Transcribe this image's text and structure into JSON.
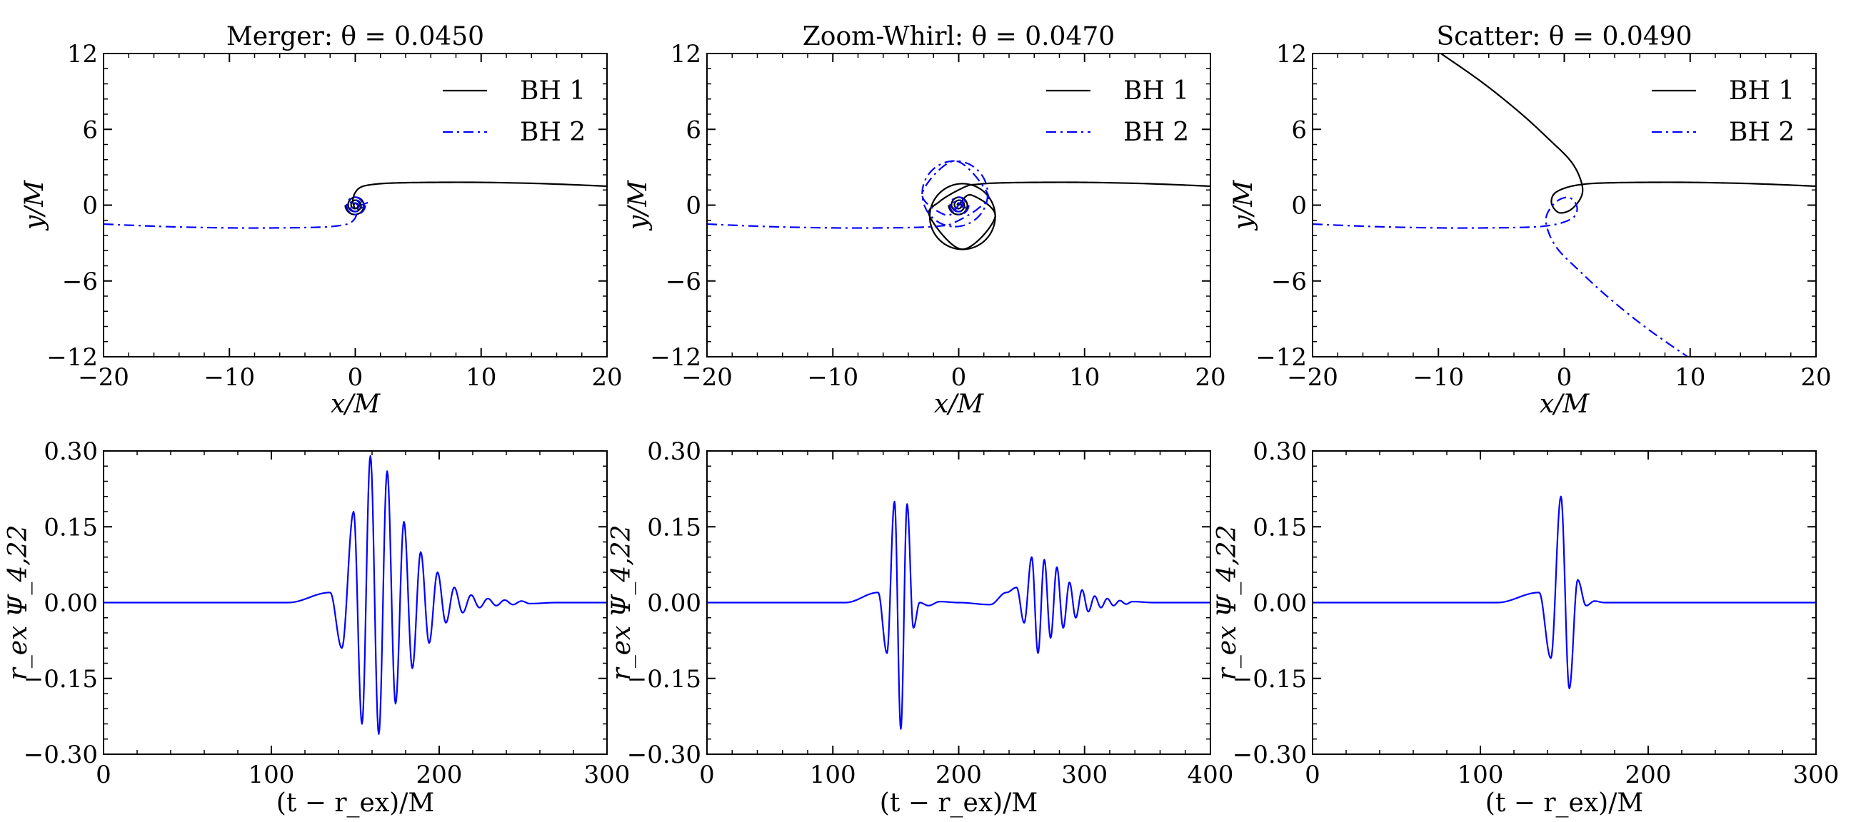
{
  "figure": {
    "description_free": true
  },
  "colors": {
    "bh1": "#000000",
    "bh2": "#0000ff",
    "wave": "#0000ff"
  },
  "legend": {
    "bh1_label": "BH 1",
    "bh2_label": "BH 2",
    "bh1_style": "solid",
    "bh2_style": "dash-dot"
  },
  "chart_data": [
    {
      "id": "traj-merger",
      "type": "line",
      "title": "Merger: θ = 0.0450",
      "xlabel": "x/M",
      "ylabel": "y/M",
      "xlim": [
        -20,
        20
      ],
      "ylim": [
        -12,
        12
      ],
      "xticks": [
        -20,
        -10,
        0,
        10,
        20
      ],
      "xtick_labels": [
        "−20",
        "−10",
        "0",
        "10",
        "20"
      ],
      "yticks": [
        -12,
        -6,
        0,
        6,
        12
      ],
      "ytick_labels": [
        "−12",
        "−6",
        "0",
        "6",
        "12"
      ],
      "legend_position": "top-right",
      "orbit": {
        "kind": "merger",
        "incoming_offset": 1.5,
        "spiral_turns": 3,
        "spiral_radius_start": 0.8,
        "spiral_radius_end": 0.1
      },
      "series": [
        {
          "name": "BH 1",
          "style": "solid",
          "color": "#000000",
          "x": [
            20,
            15,
            10,
            6,
            3,
            1.5,
            0.5,
            0.0,
            -0.2,
            0.0
          ],
          "y": [
            1.5,
            1.7,
            1.8,
            1.8,
            1.75,
            1.65,
            1.45,
            1.0,
            0.3,
            -0.3
          ]
        },
        {
          "name": "BH 2",
          "style": "dash-dot",
          "color": "#0000ff",
          "x": [
            -20,
            -15,
            -10,
            -6,
            -3,
            -1.5,
            -0.5,
            0.0,
            0.2,
            0.5,
            1.0
          ],
          "y": [
            -1.5,
            -1.7,
            -1.8,
            -1.8,
            -1.75,
            -1.65,
            -1.45,
            -1.0,
            -0.3,
            0.0,
            0.2
          ]
        }
      ]
    },
    {
      "id": "traj-zoomwhirl",
      "type": "line",
      "title": "Zoom-Whirl: θ = 0.0470",
      "xlabel": "x/M",
      "ylabel": "y/M",
      "xlim": [
        -20,
        20
      ],
      "ylim": [
        -12,
        12
      ],
      "xticks": [
        -20,
        -10,
        0,
        10,
        20
      ],
      "xtick_labels": [
        "−20",
        "−10",
        "0",
        "10",
        "20"
      ],
      "yticks": [
        -12,
        -6,
        0,
        6,
        12
      ],
      "ytick_labels": [
        "−12",
        "−6",
        "0",
        "6",
        "12"
      ],
      "legend_position": "top-right",
      "orbit": {
        "kind": "zoomwhirl",
        "incoming_offset": 1.5,
        "whirl_radius": 2.6,
        "whirl_center": [
          0.3,
          -0.9
        ],
        "spiral_turns": 3,
        "spiral_radius_start": 0.8,
        "spiral_radius_end": 0.1
      },
      "series": [
        {
          "name": "BH 1",
          "style": "solid",
          "color": "#000000",
          "x": [
            20,
            15,
            10,
            6,
            3,
            1.5,
            0.5,
            -1.5,
            -2.3,
            0.3,
            2.9,
            1.0,
            0.0
          ],
          "y": [
            1.5,
            1.7,
            1.8,
            1.8,
            1.75,
            1.65,
            1.45,
            0.3,
            -0.9,
            -3.5,
            -0.9,
            0.8,
            0.0
          ]
        },
        {
          "name": "BH 2",
          "style": "dash-dot",
          "color": "#0000ff",
          "x": [
            -20,
            -15,
            -10,
            -6,
            -3,
            -1.5,
            -0.5,
            1.5,
            2.3,
            -0.3,
            -2.9,
            -1.0,
            0.0
          ],
          "y": [
            -1.5,
            -1.7,
            -1.8,
            -1.8,
            -1.75,
            -1.65,
            -1.45,
            -0.3,
            0.9,
            3.5,
            0.9,
            -0.8,
            0.0
          ]
        }
      ]
    },
    {
      "id": "traj-scatter",
      "type": "line",
      "title": "Scatter: θ = 0.0490",
      "xlabel": "x/M",
      "ylabel": "y/M",
      "xlim": [
        -20,
        20
      ],
      "ylim": [
        -12,
        12
      ],
      "xticks": [
        -20,
        -10,
        0,
        10,
        20
      ],
      "xtick_labels": [
        "−20",
        "−10",
        "0",
        "10",
        "20"
      ],
      "yticks": [
        -12,
        -6,
        0,
        6,
        12
      ],
      "ytick_labels": [
        "−12",
        "−6",
        "0",
        "6",
        "12"
      ],
      "legend_position": "top-right",
      "orbit": {
        "kind": "scatter"
      },
      "series": [
        {
          "name": "BH 1",
          "style": "solid",
          "color": "#000000",
          "x": [
            20,
            15,
            10,
            6,
            3,
            1.5,
            0.2,
            -0.8,
            -1.0,
            -0.4,
            0.6,
            1.4,
            1.3,
            0.5,
            -1.2,
            -3.5,
            -6.5,
            -9.8
          ],
          "y": [
            1.5,
            1.7,
            1.8,
            1.8,
            1.75,
            1.65,
            1.4,
            0.9,
            0.1,
            -0.6,
            -0.3,
            0.8,
            2.0,
            3.5,
            5.2,
            7.3,
            9.7,
            12.0
          ]
        },
        {
          "name": "BH 2",
          "style": "dash-dot",
          "color": "#0000ff",
          "x": [
            -20,
            -15,
            -10,
            -6,
            -3,
            -1.5,
            -0.2,
            0.8,
            1.0,
            0.4,
            -0.6,
            -1.4,
            -1.3,
            -0.5,
            1.2,
            3.5,
            6.5,
            9.8
          ],
          "y": [
            -1.5,
            -1.7,
            -1.8,
            -1.8,
            -1.75,
            -1.65,
            -1.4,
            -0.9,
            -0.1,
            0.6,
            0.3,
            -0.8,
            -2.0,
            -3.5,
            -5.2,
            -7.3,
            -9.7,
            -12.0
          ]
        }
      ]
    },
    {
      "id": "wave-merger",
      "type": "line",
      "title": "",
      "xlabel": "(t − r_ex)/M",
      "ylabel": "r_ex Ψ_4,22",
      "xlim": [
        0,
        300
      ],
      "ylim": [
        -0.3,
        0.3
      ],
      "xticks": [
        0,
        100,
        200,
        300
      ],
      "xtick_labels": [
        "0",
        "100",
        "200",
        "300"
      ],
      "yticks": [
        -0.3,
        -0.15,
        0,
        0.15,
        0.3
      ],
      "ytick_labels": [
        "−0.30",
        "−0.15",
        "0.00",
        "0.15",
        "0.30"
      ],
      "series": [
        {
          "name": "r_ex Ψ_4,22",
          "color": "#0000ff",
          "extrema_t": [
            135,
            142,
            149,
            154,
            159,
            164,
            169,
            174,
            179,
            184,
            189,
            194,
            199,
            204,
            209,
            214,
            219,
            224,
            229,
            234,
            239,
            244,
            249,
            254
          ],
          "extrema_v": [
            0.02,
            -0.09,
            0.18,
            -0.24,
            0.29,
            -0.26,
            0.26,
            -0.2,
            0.16,
            -0.13,
            0.1,
            -0.08,
            0.06,
            -0.04,
            0.03,
            -0.02,
            0.015,
            -0.01,
            0.008,
            -0.006,
            0.005,
            -0.004,
            0.003,
            -0.002
          ],
          "onset_t": 110,
          "decay_end_t": 270
        }
      ]
    },
    {
      "id": "wave-zoomwhirl",
      "type": "line",
      "title": "",
      "xlabel": "(t − r_ex)/M",
      "ylabel": "r_ex Ψ_4,22",
      "xlim": [
        0,
        400
      ],
      "ylim": [
        -0.3,
        0.3
      ],
      "xticks": [
        0,
        100,
        200,
        300,
        400
      ],
      "xtick_labels": [
        "0",
        "100",
        "200",
        "300",
        "400"
      ],
      "yticks": [
        -0.3,
        -0.15,
        0,
        0.15,
        0.3
      ],
      "ytick_labels": [
        "−0.30",
        "−0.15",
        "0.00",
        "0.15",
        "0.30"
      ],
      "series": [
        {
          "name": "r_ex Ψ_4,22",
          "color": "#0000ff",
          "extrema_t": [
            136,
            143,
            149,
            154,
            159,
            164,
            169,
            176,
            185,
            200,
            225,
            238,
            246,
            252,
            258,
            263,
            268,
            273,
            278,
            283,
            288,
            293,
            298,
            303,
            308,
            313,
            318,
            323,
            328,
            333,
            338
          ],
          "extrema_v": [
            0.02,
            -0.1,
            0.2,
            -0.25,
            0.195,
            -0.05,
            0.0,
            -0.006,
            0.002,
            0.0,
            -0.004,
            0.02,
            0.03,
            -0.04,
            0.09,
            -0.1,
            0.085,
            -0.07,
            0.07,
            -0.05,
            0.04,
            -0.03,
            0.025,
            -0.018,
            0.013,
            -0.01,
            0.008,
            -0.006,
            0.004,
            -0.003,
            0.002
          ],
          "onset_t": 110,
          "decay_end_t": 355
        }
      ]
    },
    {
      "id": "wave-scatter",
      "type": "line",
      "title": "",
      "xlabel": "(t − r_ex)/M",
      "ylabel": "r_ex Ψ_4,22",
      "xlim": [
        0,
        300
      ],
      "ylim": [
        -0.3,
        0.3
      ],
      "xticks": [
        0,
        100,
        200,
        300
      ],
      "xtick_labels": [
        "0",
        "100",
        "200",
        "300"
      ],
      "yticks": [
        -0.3,
        -0.15,
        0,
        0.15,
        0.3
      ],
      "ytick_labels": [
        "−0.30",
        "−0.15",
        "0.00",
        "0.15",
        "0.30"
      ],
      "series": [
        {
          "name": "r_ex Ψ_4,22",
          "color": "#0000ff",
          "extrema_t": [
            135,
            142,
            148,
            153,
            158,
            163,
            168,
            174
          ],
          "extrema_v": [
            0.02,
            -0.11,
            0.21,
            -0.17,
            0.045,
            -0.006,
            0.003,
            0.0
          ],
          "onset_t": 110,
          "decay_end_t": 185
        }
      ]
    }
  ]
}
